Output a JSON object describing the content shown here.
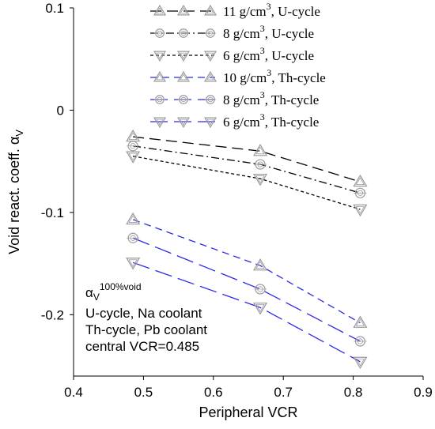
{
  "chart_data": {
    "type": "line",
    "xlabel": "Peripheral VCR",
    "ylabel": "Void react. coeff. α",
    "ylabel_sub": "V",
    "xlim": [
      0.4,
      0.9
    ],
    "ylim": [
      -0.26,
      0.1
    ],
    "x_ticks": [
      {
        "v": 0.4,
        "label": "0.4"
      },
      {
        "v": 0.5,
        "label": "0.5"
      },
      {
        "v": 0.6,
        "label": "0.6"
      },
      {
        "v": 0.7,
        "label": "0.7"
      },
      {
        "v": 0.8,
        "label": "0.8"
      },
      {
        "v": 0.9,
        "label": "0.9"
      }
    ],
    "y_ticks": [
      {
        "v": 0.1,
        "label": "0.1"
      },
      {
        "v": 0,
        "label": "0"
      },
      {
        "v": -0.1,
        "label": "-0.1"
      },
      {
        "v": -0.2,
        "label": "-0.2"
      }
    ],
    "grid": false,
    "legend_position": "top-right",
    "series": [
      {
        "name": "11 g/cm",
        "sup": "3",
        "suffix": ", U-cycle",
        "color": "#000000",
        "marker": "triangle-up",
        "dash": "14,7",
        "x": [
          0.485,
          0.667,
          0.81
        ],
        "y": [
          -0.026,
          -0.04,
          -0.07
        ]
      },
      {
        "name": "8 g/cm",
        "sup": "3",
        "suffix": ", U-cycle",
        "color": "#000000",
        "marker": "circle",
        "dash": "10,4,2,4",
        "x": [
          0.485,
          0.667,
          0.81
        ],
        "y": [
          -0.035,
          -0.053,
          -0.081
        ]
      },
      {
        "name": "6 g/cm",
        "sup": "3",
        "suffix": ", U-cycle",
        "color": "#000000",
        "marker": "triangle-down",
        "dash": "4,3",
        "x": [
          0.485,
          0.667,
          0.81
        ],
        "y": [
          -0.045,
          -0.067,
          -0.097
        ]
      },
      {
        "name": "10 g/cm",
        "sup": "3",
        "suffix": ", Th-cycle",
        "color": "#2a2ae6",
        "marker": "triangle-up",
        "dash": "9,6",
        "x": [
          0.485,
          0.667,
          0.81
        ],
        "y": [
          -0.107,
          -0.152,
          -0.208
        ]
      },
      {
        "name": "8 g/cm",
        "sup": "3",
        "suffix": ", Th-cycle",
        "color": "#2a2ae6",
        "marker": "circle",
        "dash": "22,8",
        "x": [
          0.485,
          0.667,
          0.81
        ],
        "y": [
          -0.125,
          -0.175,
          -0.226
        ]
      },
      {
        "name": "6 g/cm",
        "sup": "3",
        "suffix": ", Th-cycle",
        "color": "#2a2ae6",
        "marker": "triangle-down",
        "dash": "22,8",
        "x": [
          0.485,
          0.667,
          0.81
        ],
        "y": [
          -0.149,
          -0.193,
          -0.246
        ]
      }
    ],
    "annotation": {
      "alpha": "α",
      "alpha_sub": "V",
      "alpha_sup": "100%void",
      "lines": [
        "U-cycle, Na coolant",
        "Th-cycle, Pb coolant",
        "central VCR=0.485"
      ]
    },
    "marker_stroke_color": "#9a9a9a"
  }
}
